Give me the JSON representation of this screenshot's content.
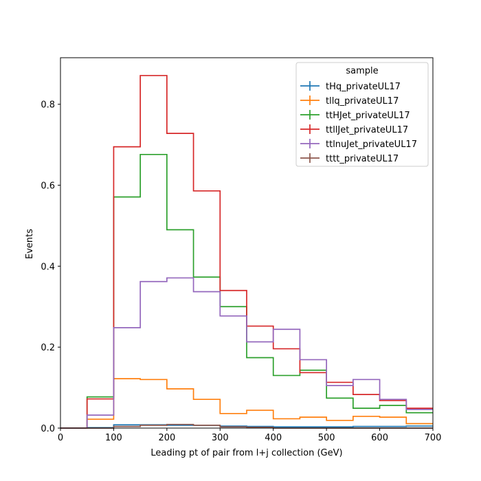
{
  "chart_data": {
    "type": "step-histogram",
    "xlabel": "Leading pt of pair from l+j collection (GeV)",
    "ylabel": "Events",
    "xlim": [
      0,
      700
    ],
    "ylim": [
      0,
      0.915
    ],
    "xticks": [
      0,
      100,
      200,
      300,
      400,
      500,
      600,
      700
    ],
    "yticks": [
      0.0,
      0.2,
      0.4,
      0.6,
      0.8
    ],
    "ytick_labels": [
      "0.0",
      "0.2",
      "0.4",
      "0.6",
      "0.8"
    ],
    "bin_edges": [
      0,
      50,
      100,
      150,
      200,
      250,
      300,
      350,
      400,
      450,
      500,
      550,
      600,
      650,
      700
    ],
    "legend": {
      "title": "sample",
      "placement": "top-right"
    },
    "grid": false,
    "series": [
      {
        "name": "tHq_privateUL17",
        "color": "#1f77b4",
        "values": [
          0.0,
          0.001,
          0.008,
          0.008,
          0.007,
          0.007,
          0.005,
          0.004,
          0.003,
          0.003,
          0.003,
          0.004,
          0.004,
          0.005
        ]
      },
      {
        "name": "tllq_privateUL17",
        "color": "#ff7f0e",
        "values": [
          0.0,
          0.022,
          0.122,
          0.12,
          0.097,
          0.071,
          0.036,
          0.044,
          0.023,
          0.027,
          0.019,
          0.029,
          0.027,
          0.011
        ]
      },
      {
        "name": "ttHJet_privateUL17",
        "color": "#2ca02c",
        "values": [
          0.0,
          0.077,
          0.571,
          0.676,
          0.49,
          0.373,
          0.3,
          0.174,
          0.13,
          0.143,
          0.074,
          0.049,
          0.056,
          0.038
        ]
      },
      {
        "name": "ttllJet_privateUL17",
        "color": "#d62728",
        "values": [
          0.0,
          0.072,
          0.695,
          0.871,
          0.728,
          0.586,
          0.34,
          0.252,
          0.196,
          0.137,
          0.113,
          0.083,
          0.068,
          0.049
        ]
      },
      {
        "name": "ttlnuJet_privateUL17",
        "color": "#9467bd",
        "values": [
          0.0,
          0.032,
          0.248,
          0.362,
          0.371,
          0.337,
          0.277,
          0.213,
          0.244,
          0.169,
          0.105,
          0.12,
          0.071,
          0.046
        ]
      },
      {
        "name": "tttt_privateUL17",
        "color": "#8c564b",
        "values": [
          0.0,
          0.0,
          0.004,
          0.007,
          0.009,
          0.007,
          0.003,
          0.002,
          0.0,
          0.0,
          0.0,
          0.0,
          0.0,
          0.0
        ]
      }
    ]
  }
}
